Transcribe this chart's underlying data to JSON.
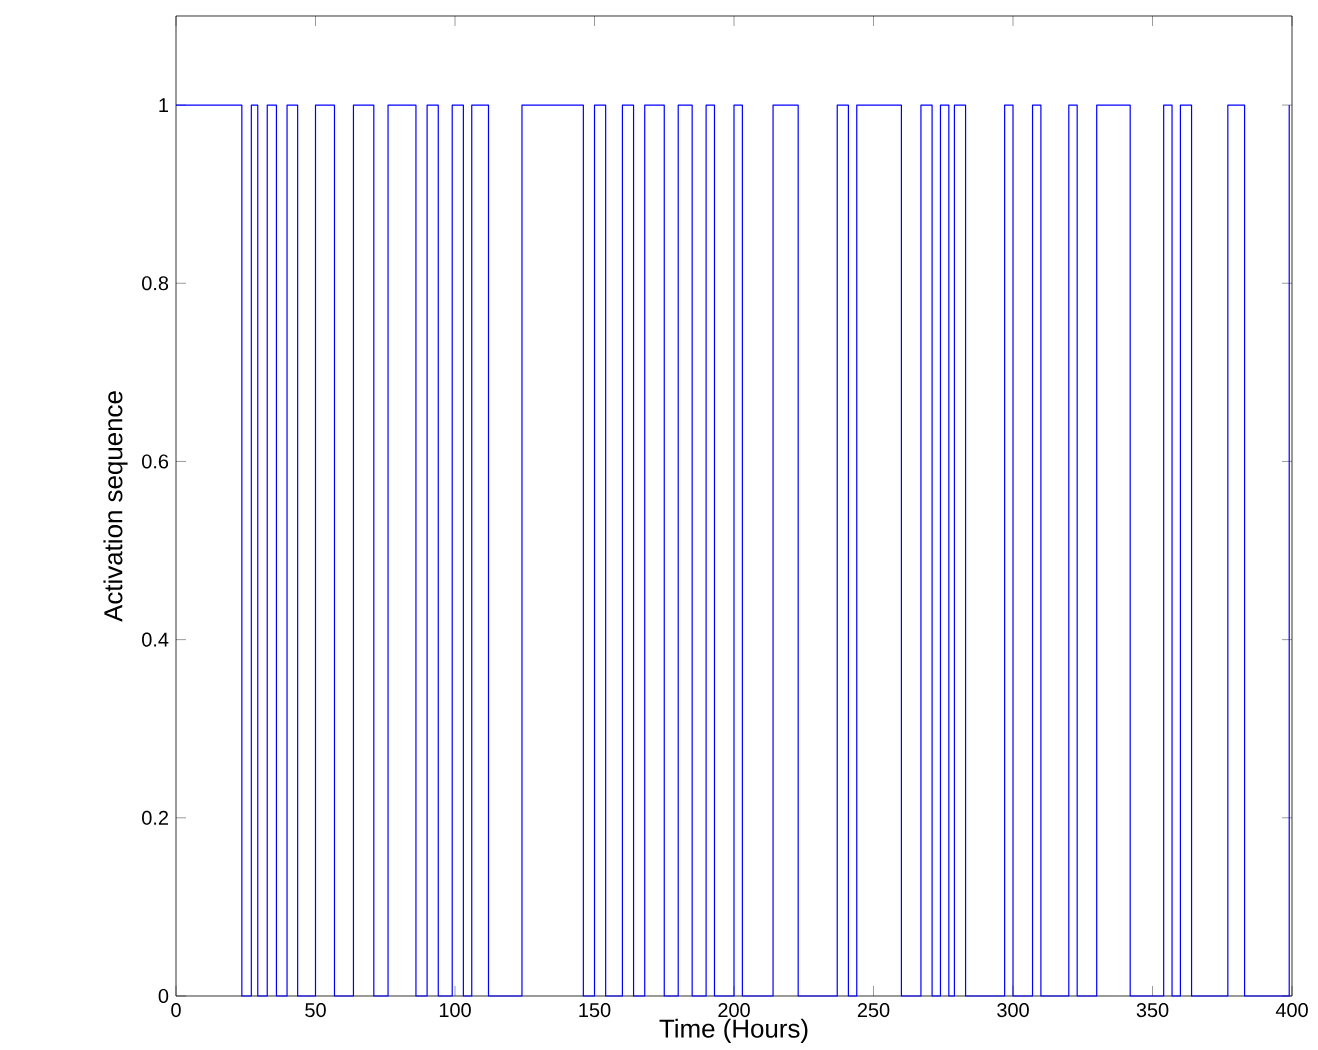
{
  "chart_data": {
    "type": "step",
    "xlabel": "Time (Hours)",
    "ylabel": "Activation sequence",
    "xlim": [
      0,
      400
    ],
    "ylim": [
      0,
      1.1
    ],
    "xticks": [
      0,
      50,
      100,
      150,
      200,
      250,
      300,
      350,
      400
    ],
    "yticks": [
      0,
      0.2,
      0.4,
      0.6,
      0.8,
      1
    ],
    "grid": false,
    "marker": "none",
    "line_style": "solid",
    "series": [
      {
        "color": "#0000ff",
        "x": [
          0,
          23.6,
          27,
          29.3,
          32.7,
          36,
          39.8,
          43.6,
          50,
          56.8,
          63.6,
          70.9,
          76,
          86,
          90,
          94,
          99,
          103,
          106,
          112,
          124,
          146,
          150,
          154,
          160,
          164,
          168,
          175,
          180,
          185,
          190,
          193,
          200,
          203,
          214,
          223,
          237,
          241,
          244,
          260,
          267,
          271,
          274,
          277,
          279,
          283,
          297,
          300,
          307,
          310,
          320,
          323,
          330,
          342,
          354,
          357,
          360,
          364,
          377,
          383,
          399
        ],
        "values": [
          1,
          0,
          1,
          0,
          1,
          0,
          1,
          0,
          1,
          0,
          1,
          0,
          1,
          0,
          1,
          0,
          1,
          0,
          1,
          0,
          1,
          0,
          1,
          0,
          1,
          0,
          1,
          0,
          1,
          0,
          1,
          0,
          1,
          0,
          1,
          0,
          1,
          0,
          1,
          0,
          1,
          0,
          1,
          0,
          1,
          0,
          1,
          0,
          1,
          0,
          1,
          0,
          1,
          0,
          1,
          0,
          1,
          0,
          1,
          0,
          1
        ]
      }
    ]
  }
}
